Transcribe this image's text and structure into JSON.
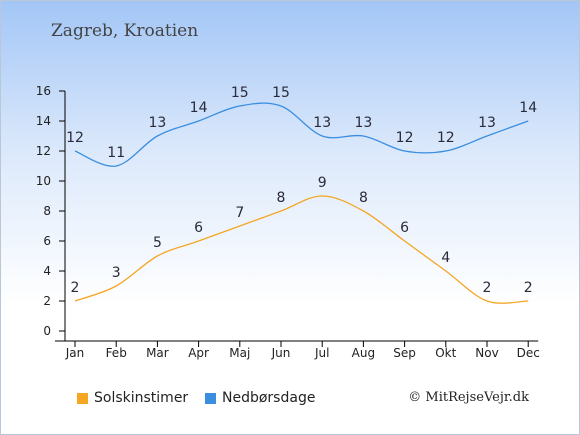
{
  "title": "Zagreb, Kroatien",
  "credit": "© MitRejseVejr.dk",
  "chart_data": {
    "type": "line",
    "categories": [
      "Jan",
      "Feb",
      "Mar",
      "Apr",
      "Maj",
      "Jun",
      "Jul",
      "Aug",
      "Sep",
      "Okt",
      "Nov",
      "Dec"
    ],
    "ylim": [
      0,
      16
    ],
    "yticks": [
      0,
      2,
      4,
      6,
      8,
      10,
      12,
      14,
      16
    ],
    "grid": false,
    "legend_position": "bottom-left",
    "series": [
      {
        "name": "Solskinstimer",
        "color": "#f5a623",
        "values": [
          2,
          3,
          5,
          6,
          7,
          8,
          9,
          8,
          6,
          4,
          2,
          2
        ]
      },
      {
        "name": "Nedbørsdage",
        "color": "#3a8ee0",
        "values": [
          12,
          11,
          13,
          14,
          15,
          15,
          13,
          13,
          12,
          12,
          13,
          14
        ]
      }
    ]
  }
}
